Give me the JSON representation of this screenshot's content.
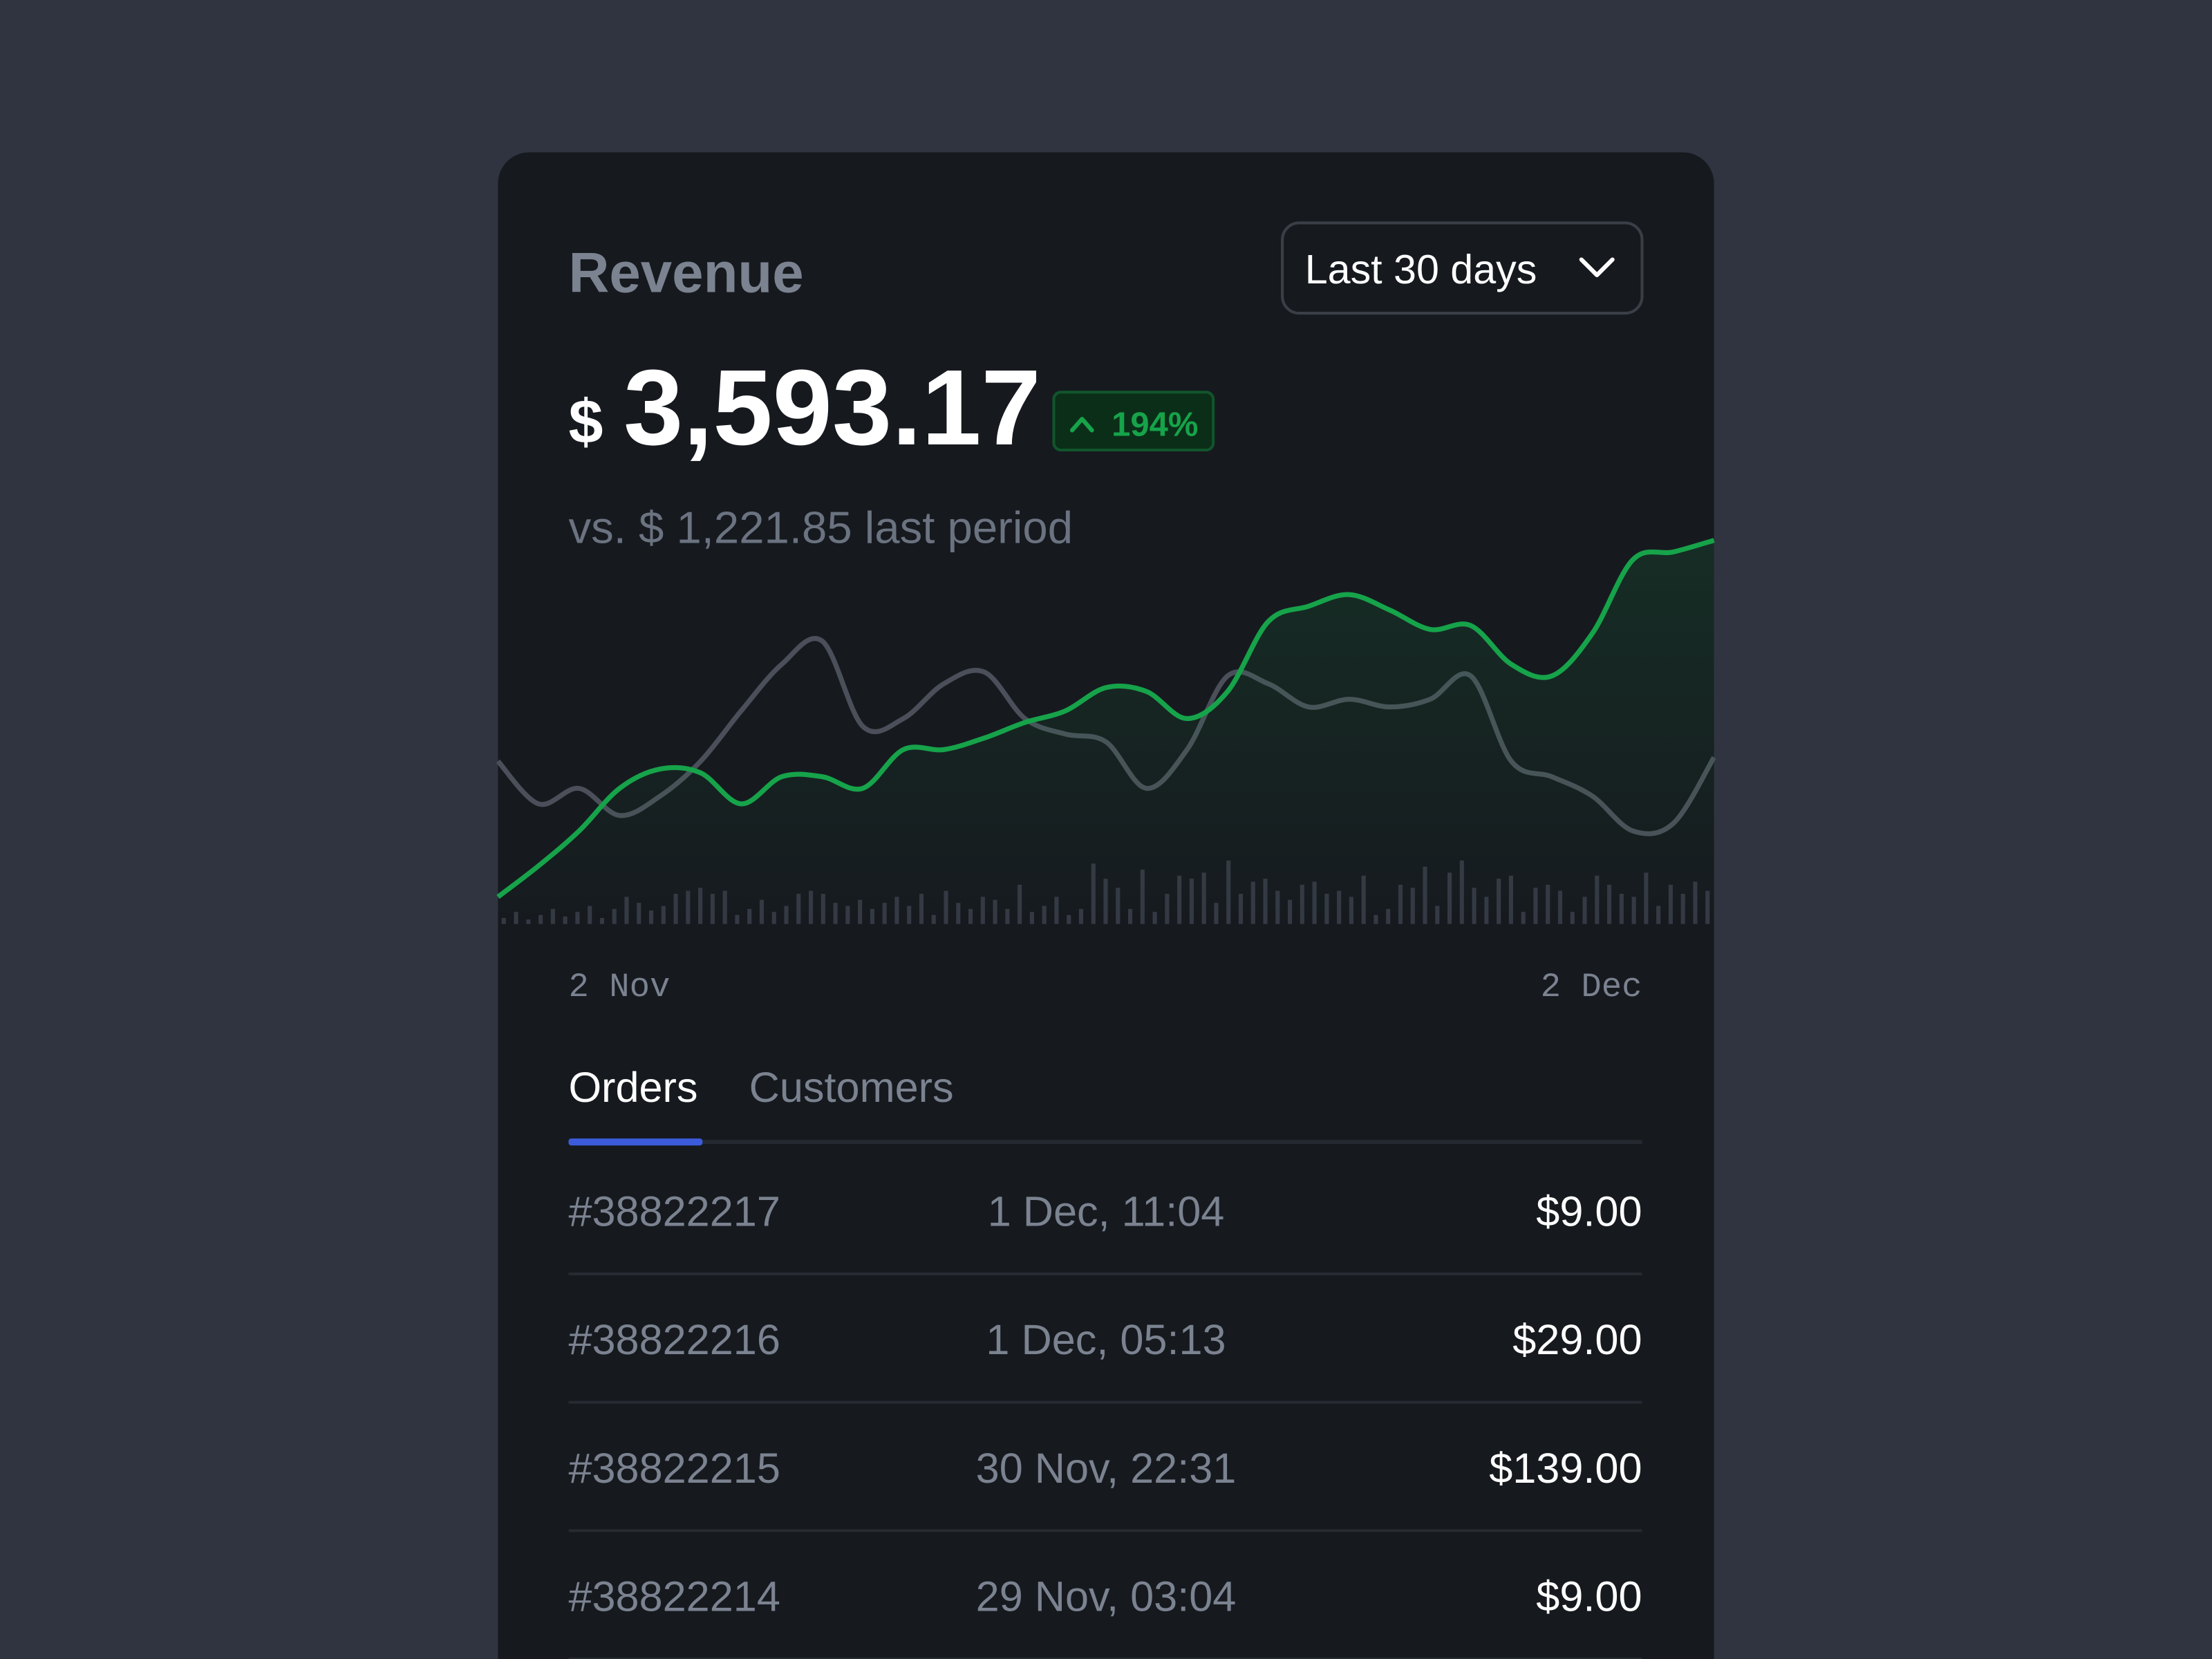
{
  "header": {
    "title": "Revenue",
    "period": "Last 30 days",
    "currency": "$",
    "amount": "3,593.17",
    "change": "194%",
    "comparison": "vs. $ 1,221.85 last period"
  },
  "chart_data": {
    "type": "line",
    "categories": [
      "2 Nov",
      null,
      null,
      null,
      null,
      null,
      null,
      null,
      null,
      null,
      null,
      null,
      null,
      null,
      null,
      null,
      null,
      null,
      null,
      null,
      null,
      null,
      null,
      null,
      null,
      null,
      null,
      null,
      null,
      null,
      "2 Dec"
    ],
    "series": [
      {
        "color": "#16a34a",
        "values": [
          7,
          15,
          24,
          35,
          40,
          39,
          31,
          38,
          38,
          35,
          45,
          45,
          48,
          52,
          55,
          61,
          60,
          53,
          60,
          78,
          82,
          85,
          81,
          76,
          77,
          67,
          64,
          75,
          94,
          96,
          99
        ]
      },
      {
        "color": "#4a4f59",
        "values": [
          42,
          31,
          35,
          28,
          33,
          42,
          55,
          67,
          73,
          51,
          53,
          62,
          65,
          53,
          49,
          47,
          35,
          45,
          64,
          62,
          56,
          58,
          56,
          58,
          64,
          42,
          38,
          33,
          24,
          26,
          43
        ]
      }
    ],
    "bars": {
      "color": "#343943",
      "values": [
        4,
        8,
        3,
        6,
        10,
        5,
        8,
        12,
        4,
        10,
        18,
        14,
        9,
        12,
        20,
        22,
        24,
        20,
        22,
        6,
        10,
        16,
        8,
        12,
        20,
        22,
        20,
        14,
        12,
        16,
        10,
        14,
        18,
        12,
        20,
        6,
        22,
        14,
        10,
        18,
        16,
        10,
        26,
        8,
        12,
        18,
        6,
        10,
        40,
        30,
        24,
        10,
        36,
        8,
        20,
        32,
        30,
        34,
        14,
        42,
        20,
        28,
        30,
        22,
        16,
        26,
        28,
        20,
        22,
        18,
        32,
        6,
        10,
        26,
        24,
        38,
        12,
        34,
        42,
        24,
        18,
        30,
        32,
        8,
        24,
        26,
        22,
        8,
        18,
        32,
        26,
        20,
        18,
        34,
        12,
        26,
        20,
        28,
        22
      ]
    },
    "grid": false
  },
  "tabs": [
    "Orders",
    "Customers"
  ],
  "table": {
    "rows": [
      [
        "#38822217",
        "1 Dec, 11:04",
        "$9.00"
      ],
      [
        "#38822216",
        "1 Dec, 05:13",
        "$29.00"
      ],
      [
        "#38822215",
        "30 Nov, 22:31",
        "$139.00"
      ],
      [
        "#38822214",
        "29 Nov, 03:04",
        "$9.00"
      ]
    ]
  }
}
